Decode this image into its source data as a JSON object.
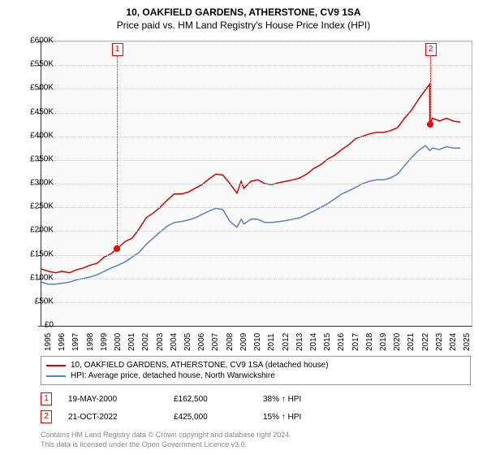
{
  "title": "10, OAKFIELD GARDENS, ATHERSTONE, CV9 1SA",
  "subtitle": "Price paid vs. HM Land Registry's House Price Index (HPI)",
  "chart": {
    "type": "line",
    "background_color": "#fafafa",
    "axis_color": "#333333",
    "grid_color": "#cccccc",
    "ylim": [
      0,
      600000
    ],
    "ytick_step": 50000,
    "yaxis_format": "£K",
    "ylabels": [
      "£0",
      "£50K",
      "£100K",
      "£150K",
      "£200K",
      "£250K",
      "£300K",
      "£350K",
      "£400K",
      "£450K",
      "£500K",
      "£550K",
      "£600K"
    ],
    "xlim": [
      1995,
      2025.8
    ],
    "xtick_step": 1,
    "xlabels": [
      "1995",
      "1996",
      "1997",
      "1998",
      "1999",
      "2000",
      "2001",
      "2002",
      "2003",
      "2004",
      "2005",
      "2006",
      "2007",
      "2008",
      "2009",
      "2010",
      "2011",
      "2012",
      "2013",
      "2014",
      "2015",
      "2016",
      "2017",
      "2018",
      "2019",
      "2020",
      "2021",
      "2022",
      "2023",
      "2024",
      "2025"
    ],
    "title_fontsize": 12,
    "label_fontsize": 10,
    "series": [
      {
        "name": "price_paid",
        "label": "10, OAKFIELD GARDENS, ATHERSTONE, CV9 1SA (detached house)",
        "color": "#dd0000",
        "line_width": 1.5,
        "data": [
          [
            1995.0,
            120000
          ],
          [
            1995.5,
            115000
          ],
          [
            1996.0,
            112000
          ],
          [
            1996.5,
            115000
          ],
          [
            1997.0,
            112000
          ],
          [
            1997.5,
            118000
          ],
          [
            1998.0,
            122000
          ],
          [
            1998.5,
            128000
          ],
          [
            1999.0,
            132000
          ],
          [
            1999.5,
            145000
          ],
          [
            2000.0,
            152000
          ],
          [
            2000.38,
            162500
          ],
          [
            2000.5,
            165000
          ],
          [
            2001.0,
            178000
          ],
          [
            2001.5,
            185000
          ],
          [
            2002.0,
            205000
          ],
          [
            2002.5,
            228000
          ],
          [
            2003.0,
            238000
          ],
          [
            2003.5,
            250000
          ],
          [
            2004.0,
            265000
          ],
          [
            2004.5,
            278000
          ],
          [
            2005.0,
            278000
          ],
          [
            2005.5,
            282000
          ],
          [
            2006.0,
            290000
          ],
          [
            2006.5,
            298000
          ],
          [
            2007.0,
            310000
          ],
          [
            2007.5,
            320000
          ],
          [
            2008.0,
            318000
          ],
          [
            2008.5,
            300000
          ],
          [
            2009.0,
            280000
          ],
          [
            2009.3,
            305000
          ],
          [
            2009.5,
            290000
          ],
          [
            2010.0,
            305000
          ],
          [
            2010.5,
            308000
          ],
          [
            2011.0,
            300000
          ],
          [
            2011.5,
            298000
          ],
          [
            2012.0,
            302000
          ],
          [
            2012.5,
            305000
          ],
          [
            2013.0,
            308000
          ],
          [
            2013.5,
            312000
          ],
          [
            2014.0,
            320000
          ],
          [
            2014.5,
            332000
          ],
          [
            2015.0,
            340000
          ],
          [
            2015.5,
            352000
          ],
          [
            2016.0,
            360000
          ],
          [
            2016.5,
            372000
          ],
          [
            2017.0,
            382000
          ],
          [
            2017.5,
            395000
          ],
          [
            2018.0,
            400000
          ],
          [
            2018.5,
            405000
          ],
          [
            2019.0,
            408000
          ],
          [
            2019.5,
            408000
          ],
          [
            2020.0,
            412000
          ],
          [
            2020.5,
            418000
          ],
          [
            2021.0,
            438000
          ],
          [
            2021.5,
            455000
          ],
          [
            2022.0,
            478000
          ],
          [
            2022.5,
            498000
          ],
          [
            2022.8,
            510000
          ],
          [
            2022.81,
            425000
          ],
          [
            2023.0,
            438000
          ],
          [
            2023.5,
            432000
          ],
          [
            2024.0,
            438000
          ],
          [
            2024.5,
            432000
          ],
          [
            2025.0,
            430000
          ]
        ]
      },
      {
        "name": "hpi",
        "label": "HPI: Average price, detached house, North Warwickshire",
        "color": "#5b7fc7",
        "line_width": 1.5,
        "data": [
          [
            1995.0,
            92000
          ],
          [
            1995.5,
            88000
          ],
          [
            1996.0,
            88000
          ],
          [
            1996.5,
            90000
          ],
          [
            1997.0,
            92000
          ],
          [
            1997.5,
            97000
          ],
          [
            1998.0,
            100000
          ],
          [
            1998.5,
            103000
          ],
          [
            1999.0,
            108000
          ],
          [
            1999.5,
            115000
          ],
          [
            2000.0,
            122000
          ],
          [
            2000.5,
            128000
          ],
          [
            2001.0,
            135000
          ],
          [
            2001.5,
            145000
          ],
          [
            2002.0,
            155000
          ],
          [
            2002.5,
            172000
          ],
          [
            2003.0,
            185000
          ],
          [
            2003.5,
            198000
          ],
          [
            2004.0,
            210000
          ],
          [
            2004.5,
            218000
          ],
          [
            2005.0,
            220000
          ],
          [
            2005.5,
            223000
          ],
          [
            2006.0,
            228000
          ],
          [
            2006.5,
            235000
          ],
          [
            2007.0,
            242000
          ],
          [
            2007.5,
            248000
          ],
          [
            2008.0,
            245000
          ],
          [
            2008.5,
            220000
          ],
          [
            2009.0,
            208000
          ],
          [
            2009.3,
            225000
          ],
          [
            2009.5,
            215000
          ],
          [
            2010.0,
            225000
          ],
          [
            2010.5,
            225000
          ],
          [
            2011.0,
            218000
          ],
          [
            2011.5,
            218000
          ],
          [
            2012.0,
            220000
          ],
          [
            2012.5,
            222000
          ],
          [
            2013.0,
            225000
          ],
          [
            2013.5,
            228000
          ],
          [
            2014.0,
            235000
          ],
          [
            2014.5,
            242000
          ],
          [
            2015.0,
            250000
          ],
          [
            2015.5,
            258000
          ],
          [
            2016.0,
            268000
          ],
          [
            2016.5,
            278000
          ],
          [
            2017.0,
            285000
          ],
          [
            2017.5,
            292000
          ],
          [
            2018.0,
            300000
          ],
          [
            2018.5,
            305000
          ],
          [
            2019.0,
            308000
          ],
          [
            2019.5,
            308000
          ],
          [
            2020.0,
            312000
          ],
          [
            2020.5,
            320000
          ],
          [
            2021.0,
            338000
          ],
          [
            2021.5,
            355000
          ],
          [
            2022.0,
            370000
          ],
          [
            2022.5,
            380000
          ],
          [
            2022.81,
            370000
          ],
          [
            2023.0,
            375000
          ],
          [
            2023.5,
            372000
          ],
          [
            2024.0,
            378000
          ],
          [
            2024.5,
            375000
          ],
          [
            2025.0,
            375000
          ]
        ]
      }
    ],
    "markers": [
      {
        "id": "1",
        "x": 2000.38,
        "y": 162500,
        "label_top": true
      },
      {
        "id": "2",
        "x": 2022.81,
        "y": 425000,
        "label_top": true
      }
    ]
  },
  "legend": {
    "series": [
      {
        "color": "#dd0000",
        "label": "10, OAKFIELD GARDENS, ATHERSTONE, CV9 1SA (detached house)"
      },
      {
        "color": "#5b7fc7",
        "label": "HPI: Average price, detached house, North Warwickshire"
      }
    ]
  },
  "transactions": [
    {
      "marker": "1",
      "date": "19-MAY-2000",
      "price": "£162,500",
      "hpi": "38% ↑ HPI"
    },
    {
      "marker": "2",
      "date": "21-OCT-2022",
      "price": "£425,000",
      "hpi": "15% ↑ HPI"
    }
  ],
  "footer": {
    "line1": "Contains HM Land Registry data © Crown copyright and database right 2024.",
    "line2": "This data is licensed under the Open Government Licence v3.0."
  }
}
